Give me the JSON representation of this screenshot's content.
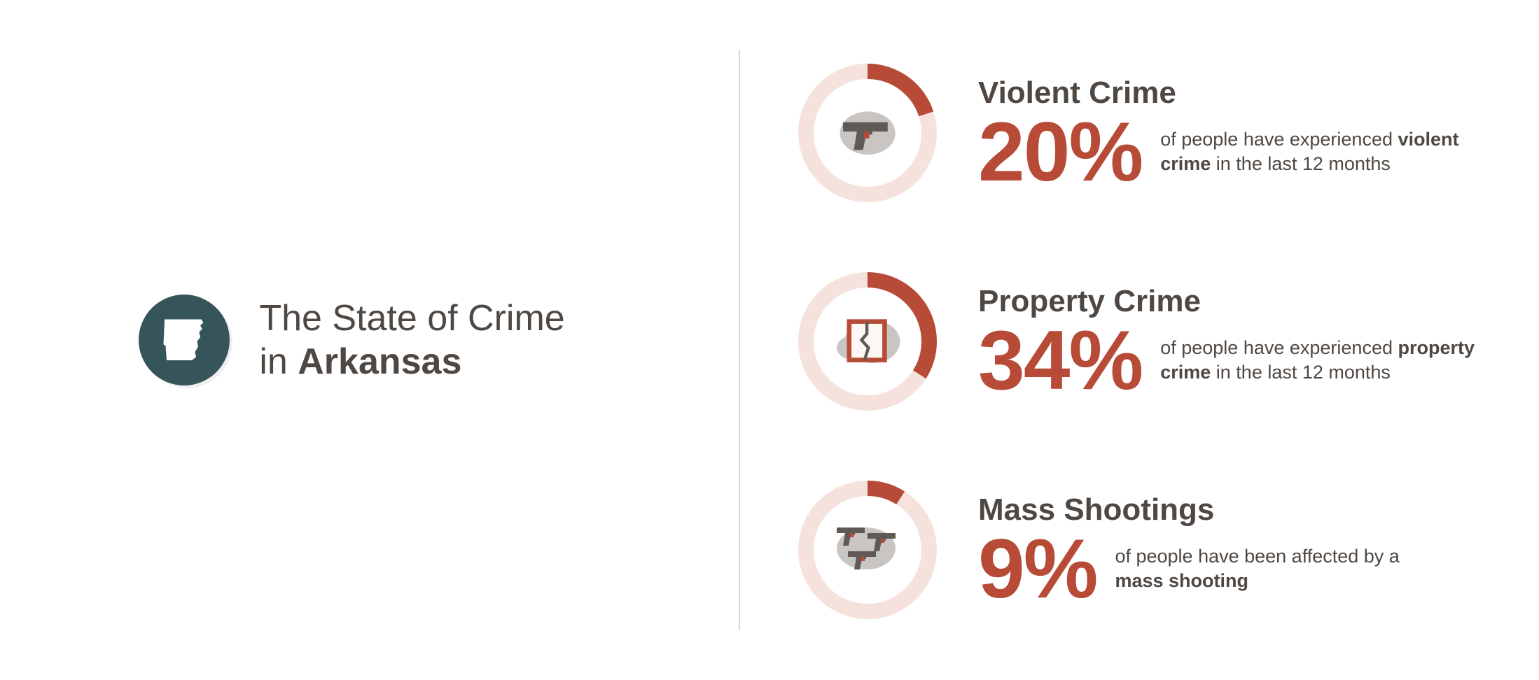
{
  "colors": {
    "accent": "#b74b37",
    "track": "#f6e2dc",
    "textDark": "#4e4742",
    "iconBg": "#35555b",
    "iconGray": "#5f5a56",
    "blobGray": "#c8c5c2"
  },
  "title": {
    "line1": "The State of Crime",
    "line2_prefix": "in ",
    "line2_bold": "Arkansas"
  },
  "stats": [
    {
      "key": "violent",
      "title": "Violent Crime",
      "percent": 20,
      "percent_label": "20%",
      "desc_pre": "of people have experienced ",
      "desc_bold": "violent crime",
      "desc_post": " in the last 12 months",
      "icon": "handgun"
    },
    {
      "key": "property",
      "title": "Property Crime",
      "percent": 34,
      "percent_label": "34%",
      "desc_pre": "of people have experienced ",
      "desc_bold": "property crime",
      "desc_post": " in the last 12 months",
      "icon": "broken-window"
    },
    {
      "key": "mass",
      "title": "Mass Shootings",
      "percent": 9,
      "percent_label": "9%",
      "desc_pre": "of people have been affected by a ",
      "desc_bold": "mass shooting",
      "desc_post": "",
      "icon": "three-guns"
    }
  ],
  "donut": {
    "radius": 88,
    "stroke": 22
  },
  "typography": {
    "title_fontsize": 52,
    "stat_title_fontsize": 44,
    "percent_fontsize": 120,
    "desc_fontsize": 27
  }
}
